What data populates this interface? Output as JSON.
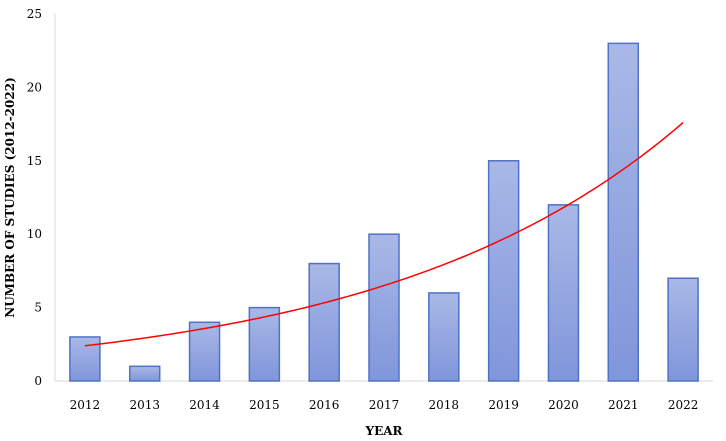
{
  "chart_data": {
    "type": "bar",
    "title": "",
    "xlabel": "YEAR",
    "ylabel": "NUMBER OF STUDIES (2012-2022)",
    "categories": [
      "2012",
      "2013",
      "2014",
      "2015",
      "2016",
      "2017",
      "2018",
      "2019",
      "2020",
      "2021",
      "2022"
    ],
    "values": [
      3,
      1,
      4,
      5,
      8,
      10,
      6,
      15,
      12,
      23,
      7
    ],
    "ylim": [
      0,
      25
    ],
    "yticks": [
      0,
      5,
      10,
      15,
      20,
      25
    ],
    "grid": false,
    "legend": "none",
    "trendline": {
      "type": "exponential",
      "color": "#ff0000",
      "values": [
        2.4,
        2.9,
        3.5,
        4.3,
        5.3,
        6.5,
        7.9,
        9.7,
        11.8,
        14.4,
        17.6
      ]
    },
    "colors": {
      "bar_fill_top": "#a9b8e6",
      "bar_fill_bottom": "#8096db",
      "bar_stroke": "#4f72c4",
      "trendline": "#ff0000"
    }
  }
}
